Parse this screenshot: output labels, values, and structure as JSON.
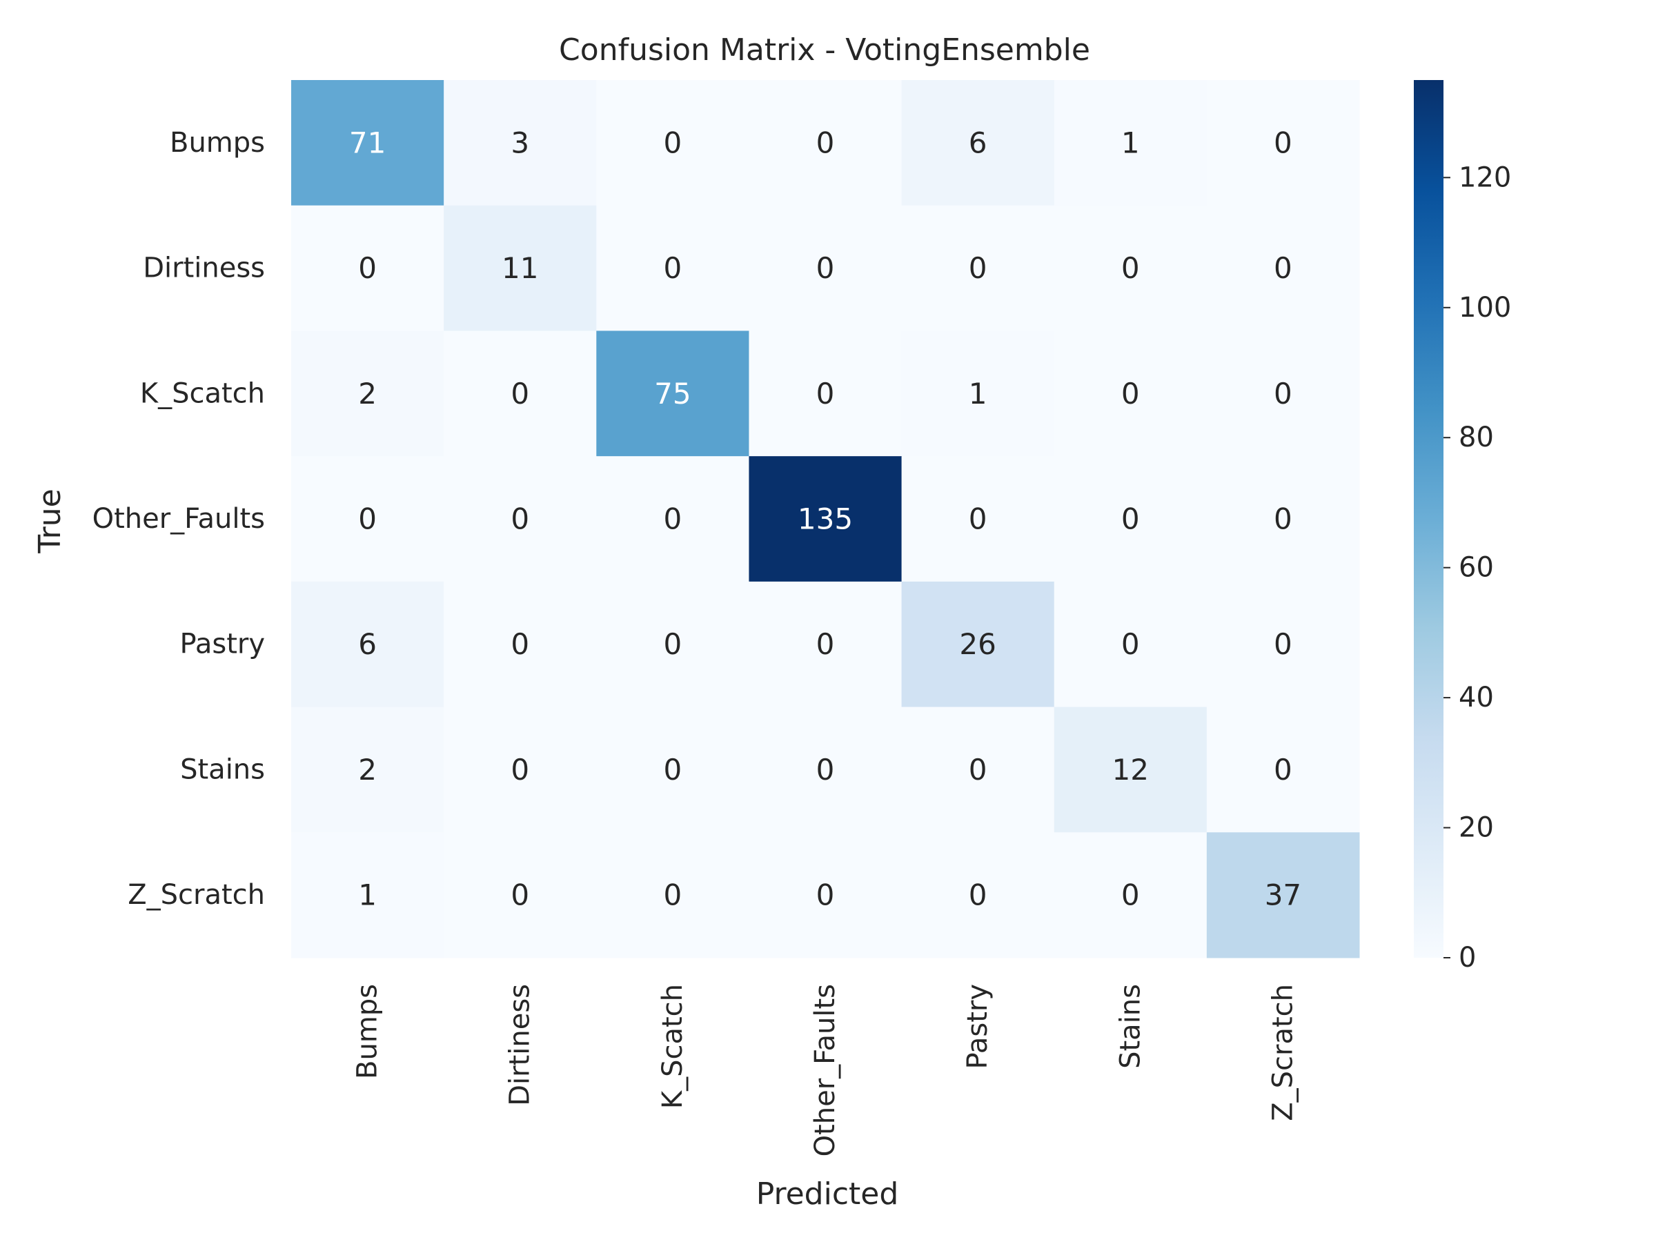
{
  "chart_data": {
    "type": "heatmap",
    "title": "Confusion Matrix - VotingEnsemble",
    "xlabel": "Predicted",
    "ylabel": "True",
    "x_categories": [
      "Bumps",
      "Dirtiness",
      "K_Scatch",
      "Other_Faults",
      "Pastry",
      "Stains",
      "Z_Scratch"
    ],
    "y_categories": [
      "Bumps",
      "Dirtiness",
      "K_Scatch",
      "Other_Faults",
      "Pastry",
      "Stains",
      "Z_Scratch"
    ],
    "values": [
      [
        71,
        3,
        0,
        0,
        6,
        1,
        0
      ],
      [
        0,
        11,
        0,
        0,
        0,
        0,
        0
      ],
      [
        2,
        0,
        75,
        0,
        1,
        0,
        0
      ],
      [
        0,
        0,
        0,
        135,
        0,
        0,
        0
      ],
      [
        6,
        0,
        0,
        0,
        26,
        0,
        0
      ],
      [
        2,
        0,
        0,
        0,
        0,
        12,
        0
      ],
      [
        1,
        0,
        0,
        0,
        0,
        0,
        37
      ]
    ],
    "colormap": "Blues",
    "colorbar": {
      "range": [
        0,
        135
      ],
      "ticks": [
        0,
        20,
        40,
        60,
        80,
        100,
        120
      ]
    },
    "annotations": true,
    "grid": false
  }
}
